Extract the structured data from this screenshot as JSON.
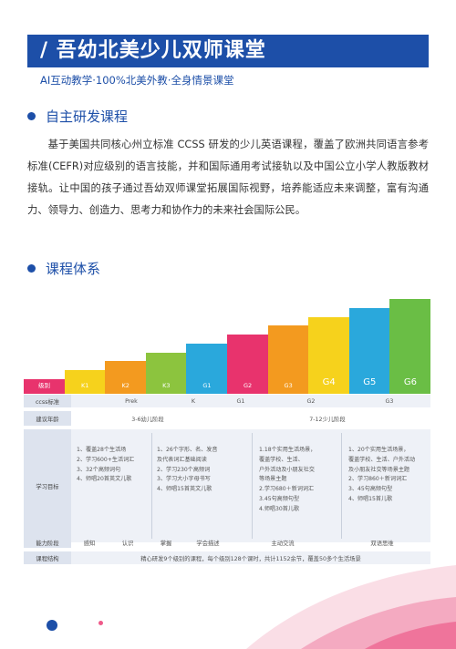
{
  "header": {
    "title": "/ 吾幼北美少儿双师课堂",
    "subtitle": "AI互动教学·100%北美外教·全身情景课堂"
  },
  "section1": {
    "title": "自主研发课程",
    "paragraph": "基于美国共同核心州立标准 CCSS 研发的少儿英语课程，覆盖了欧洲共同语言参考标准(CEFR)对应级别的语言技能，并和国际通用考试接轨以及中国公立小学人教版教材接轨。让中国的孩子通过吾幼双师课堂拓展国际视野，培养能适应未来调整，富有沟通力、领导力、创造力、思考力和协作力的未来社会国际公民。"
  },
  "section2": {
    "title": "课程体系"
  },
  "chart_data": {
    "type": "bar",
    "categories": [
      "级别",
      "K1",
      "K2",
      "K3",
      "G1",
      "G2",
      "G3",
      "G4",
      "G5",
      "G6"
    ],
    "values": [
      1,
      2,
      3,
      4,
      5,
      6,
      7,
      8,
      9,
      10
    ],
    "colors": [
      "#e8336d",
      "#f6d21c",
      "#f39a1f",
      "#8cc43e",
      "#2aa8dc",
      "#e8336d",
      "#f39a1f",
      "#f6d21c",
      "#2aa8dc",
      "#6abe45"
    ]
  },
  "table": {
    "headers": [
      "ccss标准",
      "建议年龄",
      "学习目标",
      "能力阶段",
      "课程结构"
    ],
    "ccss": [
      "Prek",
      "K",
      "G1",
      "G2",
      "G3"
    ],
    "age": [
      "3-6幼儿阶段",
      "7-12少儿阶段"
    ],
    "goals": [
      "1、覆盖28个生活场\n2、学习600+生活词汇\n3、32个高频词句\n4、师唱20首英文儿歌",
      "1、26个字形、名、发音\n   及代表词汇基础阅读\n2、学习230个高频词\n3、学习大小字母书写\n4、师唱15首英文儿歌",
      "1.18个实用生活场景，\n覆盖学校、生活、\n户外活动及小朋友社交\n等场景主题\n2.学习680＋新词词汇\n3.45句高频句型\n4.师唱30首儿歌",
      "1、20个实用生活场景，\n覆盖学校、生活、户外活动\n及小朋友社交等场景主题\n2、学习860＋新词词汇\n3、45句高频句型\n4、师唱15首儿歌"
    ],
    "ability": [
      "感知",
      "认识",
      "掌握",
      "学会描述",
      "主动交流",
      "双语思维"
    ],
    "structure": "精心研发9个级别的课程，每个级别128个课时，共计1152余节，覆盖50多个生活场景"
  }
}
